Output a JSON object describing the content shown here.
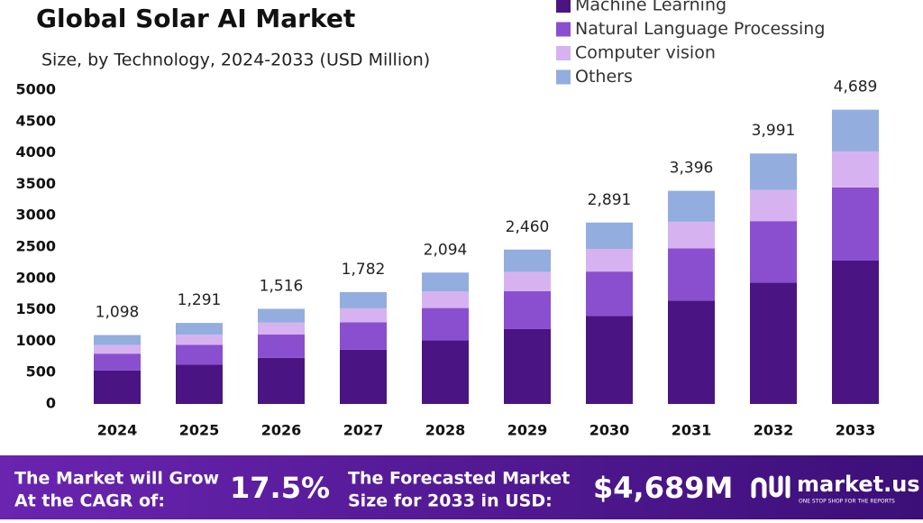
{
  "chart_data": {
    "type": "stacked_bar",
    "title": "Global Solar AI Market",
    "subtitle": "Size, by Technology, 2024-2033 (USD Million)",
    "categories": [
      "2024",
      "2025",
      "2026",
      "2027",
      "2028",
      "2029",
      "2030",
      "2031",
      "2032",
      "2033"
    ],
    "series": [
      {
        "name": "Machine Learning",
        "color": "#4a1582",
        "values": [
          533,
          626,
          735,
          864,
          1016,
          1193,
          1402,
          1647,
          1936,
          2285
        ]
      },
      {
        "name": "Natural Language Processing",
        "color": "#8a4fcf",
        "values": [
          269,
          316,
          371,
          437,
          513,
          603,
          708,
          832,
          978,
          1164
        ]
      },
      {
        "name": "Computer vision",
        "color": "#d6b3f0",
        "values": [
          137,
          161,
          190,
          223,
          262,
          308,
          361,
          425,
          499,
          575
        ]
      },
      {
        "name": "Others",
        "color": "#93addf",
        "values": [
          159,
          188,
          220,
          258,
          303,
          356,
          420,
          492,
          578,
          665
        ]
      }
    ],
    "totals": [
      1098,
      1291,
      1516,
      1782,
      2094,
      2460,
      2891,
      3396,
      3991,
      4689
    ],
    "total_labels": [
      "1,098",
      "1,291",
      "1,516",
      "1,782",
      "2,094",
      "2,460",
      "2,891",
      "3,396",
      "3,991",
      "4,689"
    ],
    "ylim": [
      0,
      5000
    ],
    "yticks": [
      0,
      500,
      1000,
      1500,
      2000,
      2500,
      3000,
      3500,
      4000,
      4500,
      5000
    ]
  },
  "footer": {
    "cagr_text": [
      "The Market will Grow",
      "At the CAGR of:"
    ],
    "cagr": "17.5%",
    "forecast_text": [
      "The Forecasted Market",
      "Size for 2033 in USD:"
    ],
    "forecast": "$4,689M",
    "brand": "market.us",
    "tagline": "ONE STOP SHOP FOR THE REPORTS"
  }
}
